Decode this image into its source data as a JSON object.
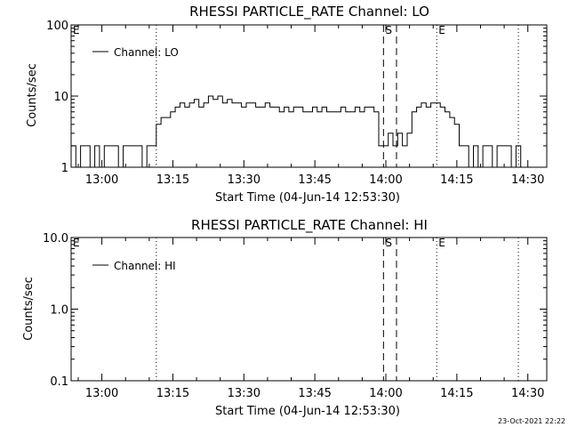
{
  "footer_timestamp": "23-Oct-2021 22:22",
  "chart_data": [
    {
      "type": "line",
      "title": "RHESSI PARTICLE_RATE Channel: LO",
      "xlabel": "Start Time (04-Jun-14 12:53:30)",
      "ylabel": "Counts/sec",
      "xlim": [
        "12:53:30",
        "14:34:00"
      ],
      "ylim": [
        1,
        100
      ],
      "yscale": "log",
      "x_ticks": [
        "13:00",
        "13:15",
        "13:30",
        "13:45",
        "14:00",
        "14:15",
        "14:30"
      ],
      "y_ticks": [
        "1",
        "10",
        "100"
      ],
      "legend": {
        "position": "top-left",
        "entries": [
          "Channel: LO"
        ]
      },
      "grid": false,
      "markers": [
        {
          "label": "E",
          "time": "12:53:30",
          "style": "dotted"
        },
        {
          "label": "",
          "time": "13:11:30",
          "style": "dotted"
        },
        {
          "label": "S",
          "time": "13:59:30",
          "style": "dashed"
        },
        {
          "label": "",
          "time": "14:02:15",
          "style": "dashed"
        },
        {
          "label": "E",
          "time": "14:10:45",
          "style": "dotted"
        },
        {
          "label": "",
          "time": "14:28:00",
          "style": "dotted"
        }
      ],
      "series": [
        {
          "name": "Channel: LO",
          "x": [
            "12:53:30",
            "12:54:30",
            "12:55:30",
            "12:56:30",
            "12:57:30",
            "12:58:30",
            "12:59:30",
            "13:00:30",
            "13:01:30",
            "13:02:30",
            "13:03:30",
            "13:04:30",
            "13:05:30",
            "13:06:30",
            "13:07:30",
            "13:08:30",
            "13:09:30",
            "13:10:30",
            "13:11:30",
            "13:12:30",
            "13:13:30",
            "13:14:30",
            "13:15:30",
            "13:16:30",
            "13:17:30",
            "13:18:30",
            "13:19:30",
            "13:20:30",
            "13:21:30",
            "13:22:30",
            "13:23:30",
            "13:24:30",
            "13:25:30",
            "13:26:30",
            "13:27:30",
            "13:28:30",
            "13:29:30",
            "13:30:30",
            "13:31:30",
            "13:32:30",
            "13:33:30",
            "13:34:30",
            "13:35:30",
            "13:36:30",
            "13:37:30",
            "13:38:30",
            "13:39:30",
            "13:40:30",
            "13:41:30",
            "13:42:30",
            "13:43:30",
            "13:44:30",
            "13:45:30",
            "13:46:30",
            "13:47:30",
            "13:48:30",
            "13:49:30",
            "13:50:30",
            "13:51:30",
            "13:52:30",
            "13:53:30",
            "13:54:30",
            "13:55:30",
            "13:56:30",
            "13:57:30",
            "13:58:30",
            "13:59:30",
            "14:00:30",
            "14:01:30",
            "14:02:30",
            "14:03:30",
            "14:04:30",
            "14:05:30",
            "14:06:30",
            "14:07:30",
            "14:08:30",
            "14:09:30",
            "14:10:30",
            "14:11:30",
            "14:12:30",
            "14:13:30",
            "14:14:30",
            "14:15:30",
            "14:16:30",
            "14:17:30",
            "14:18:30",
            "14:19:30",
            "14:20:30",
            "14:21:30",
            "14:22:30",
            "14:23:30",
            "14:24:30",
            "14:25:30",
            "14:26:30",
            "14:27:30",
            "14:28:30"
          ],
          "y": [
            2,
            1,
            2,
            2,
            1,
            2,
            1,
            2,
            2,
            2,
            1,
            2,
            2,
            2,
            2,
            1,
            2,
            2,
            4,
            5,
            5,
            6,
            7,
            8,
            7,
            8,
            9,
            7,
            8,
            10,
            9,
            10,
            8,
            9,
            8,
            8,
            7,
            8,
            8,
            7,
            7,
            8,
            7,
            7,
            6,
            7,
            6,
            7,
            7,
            6,
            6,
            7,
            6,
            7,
            6,
            6,
            6,
            7,
            6,
            6,
            7,
            6,
            7,
            7,
            6,
            2,
            2,
            3,
            2,
            3,
            2,
            3,
            6,
            7,
            8,
            7,
            8,
            8,
            7,
            6,
            5,
            4,
            2,
            2,
            1,
            2,
            1,
            2,
            2,
            1,
            2,
            2,
            2,
            1,
            2,
            1
          ]
        }
      ]
    },
    {
      "type": "line",
      "title": "RHESSI PARTICLE_RATE Channel: HI",
      "xlabel": "Start Time (04-Jun-14 12:53:30)",
      "ylabel": "Counts/sec",
      "xlim": [
        "12:53:30",
        "14:34:00"
      ],
      "ylim": [
        0.1,
        10.0
      ],
      "yscale": "log",
      "x_ticks": [
        "13:00",
        "13:15",
        "13:30",
        "13:45",
        "14:00",
        "14:15",
        "14:30"
      ],
      "y_ticks": [
        "0.1",
        "1.0",
        "10.0"
      ],
      "legend": {
        "position": "top-left",
        "entries": [
          "Channel: HI"
        ]
      },
      "grid": false,
      "markers": [
        {
          "label": "E",
          "time": "12:53:30",
          "style": "dotted"
        },
        {
          "label": "",
          "time": "13:11:30",
          "style": "dotted"
        },
        {
          "label": "S",
          "time": "13:59:30",
          "style": "dashed"
        },
        {
          "label": "",
          "time": "14:02:15",
          "style": "dashed"
        },
        {
          "label": "E",
          "time": "14:10:45",
          "style": "dotted"
        },
        {
          "label": "",
          "time": "14:28:00",
          "style": "dotted"
        }
      ],
      "series": [
        {
          "name": "Channel: HI",
          "x": [],
          "y": []
        }
      ]
    }
  ]
}
